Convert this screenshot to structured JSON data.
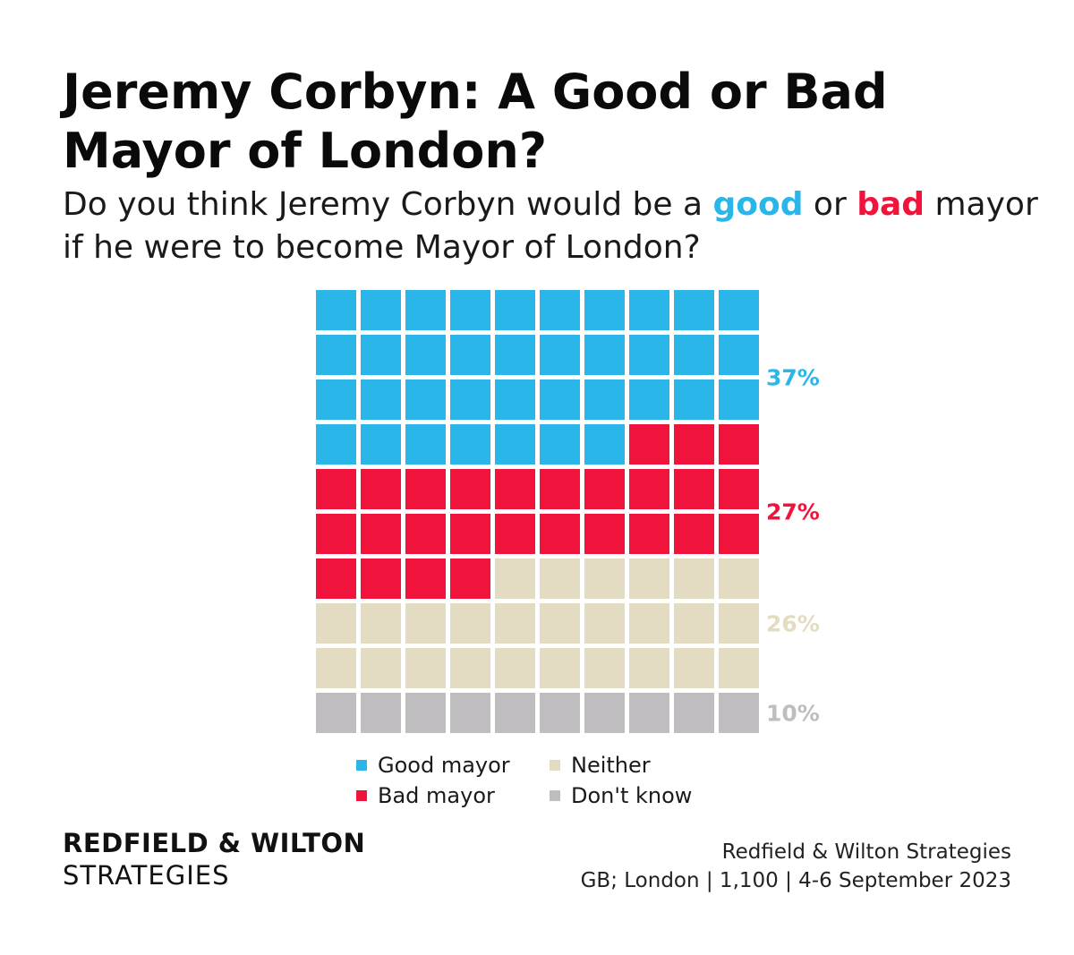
{
  "title": "Jeremy Corbyn: A Good or Bad Mayor of London?",
  "subtitle": {
    "part1": "Do you think Jeremy Corbyn would be a ",
    "good": "good",
    "part2": " or ",
    "bad": "bad",
    "part3": " mayor if he were to become Mayor of London?"
  },
  "colors": {
    "good": "#2bb6ea",
    "bad": "#f0143c",
    "neither": "#e3dcc2",
    "dont_know": "#bfbdbf"
  },
  "chart_data": {
    "type": "waffle",
    "total_cells": 100,
    "columns": 10,
    "series": [
      {
        "name": "Good mayor",
        "value": 37,
        "label": "37%",
        "color": "#2bb6ea"
      },
      {
        "name": "Bad mayor",
        "value": 27,
        "label": "27%",
        "color": "#f0143c"
      },
      {
        "name": "Neither",
        "value": 26,
        "label": "26%",
        "color": "#e3dcc2"
      },
      {
        "name": "Don't know",
        "value": 10,
        "label": "10%",
        "color": "#bfbdbf"
      }
    ],
    "legend_placement": "bottom"
  },
  "legend": [
    {
      "label": "Good mayor",
      "color": "#2bb6ea"
    },
    {
      "label": "Neither",
      "color": "#e3dcc2"
    },
    {
      "label": "Bad mayor",
      "color": "#f0143c"
    },
    {
      "label": "Don't know",
      "color": "#bfbdbf"
    }
  ],
  "brand": {
    "line1": "REDFIELD & WILTON",
    "line2": "STRATEGIES"
  },
  "source": {
    "line1": "Redfield & Wilton Strategies",
    "line2": "GB; London | 1,100 | 4-6 September 2023"
  }
}
